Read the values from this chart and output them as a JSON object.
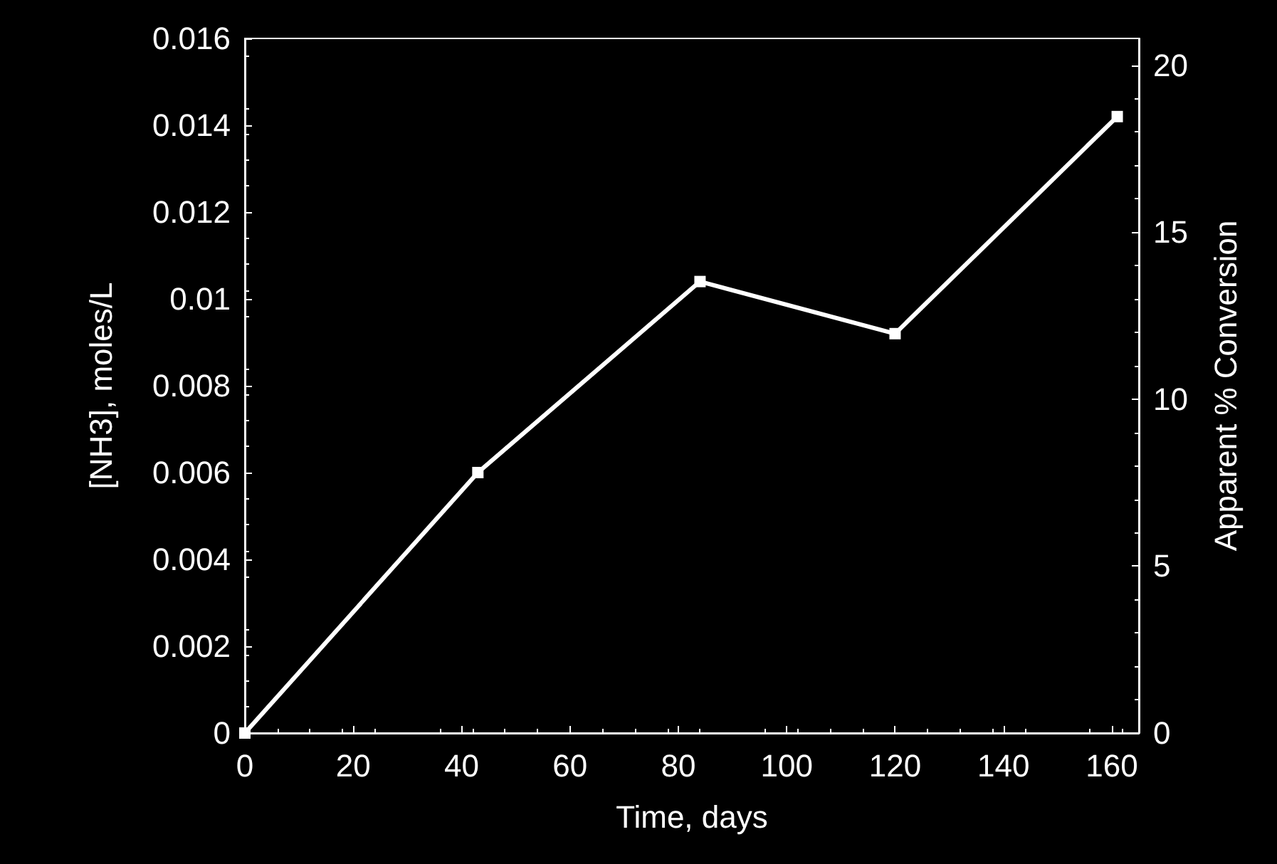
{
  "chart_data": {
    "type": "line",
    "xlabel": "Time, days",
    "ylabel": "[NH3], moles/L",
    "y2label": "Apparent % Conversion",
    "x": [
      0,
      43,
      84,
      120,
      161
    ],
    "series": [
      {
        "color": "#ffffff",
        "values": [
          0,
          0.006,
          0.0104,
          0.0092,
          0.0142
        ]
      }
    ],
    "xlim": [
      0,
      165
    ],
    "xticks": [
      0,
      20,
      40,
      60,
      80,
      100,
      120,
      140,
      160
    ],
    "ylim": [
      0,
      0.016
    ],
    "yticks": [
      0,
      0.002,
      0.004,
      0.006,
      0.008,
      0.01,
      0.012,
      0.014,
      0.016
    ],
    "y2lim": [
      0,
      20.8
    ],
    "y2ticks": [
      0,
      5,
      10,
      15,
      20
    ],
    "grid": false,
    "marker": "square",
    "line_style": "solid"
  }
}
